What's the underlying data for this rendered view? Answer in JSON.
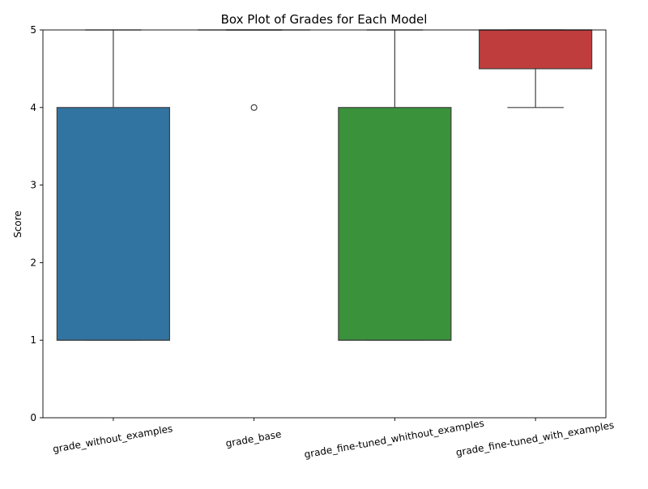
{
  "chart_data": {
    "type": "box",
    "title": "Box Plot of Grades for Each Model",
    "xlabel": "",
    "ylabel": "Score",
    "ylim": [
      0,
      5
    ],
    "yticks": [
      0,
      1,
      2,
      3,
      4,
      5
    ],
    "categories": [
      "grade_without_examples",
      "grade_base",
      "grade_fine-tuned_whithout_examples",
      "grade_fine-tuned_with_examples"
    ],
    "boxes": [
      {
        "category": "grade_without_examples",
        "whisker_low": 1,
        "q1": 1,
        "median": 1,
        "q3": 4,
        "whisker_high": 5,
        "outliers": [],
        "color": "#3274a1"
      },
      {
        "category": "grade_base",
        "whisker_low": 5,
        "q1": 5,
        "median": 5,
        "q3": 5,
        "whisker_high": 5,
        "outliers": [
          4
        ],
        "color": "#e1812c"
      },
      {
        "category": "grade_fine-tuned_whithout_examples",
        "whisker_low": 1,
        "q1": 1,
        "median": 1,
        "q3": 4,
        "whisker_high": 5,
        "outliers": [],
        "color": "#3a923a"
      },
      {
        "category": "grade_fine-tuned_with_examples",
        "whisker_low": 4,
        "q1": 4.5,
        "median": 5,
        "q3": 5,
        "whisker_high": 5,
        "outliers": [],
        "color": "#c03d3e"
      }
    ],
    "grid": false,
    "legend": "none",
    "xtick_rotation": "slanted"
  }
}
